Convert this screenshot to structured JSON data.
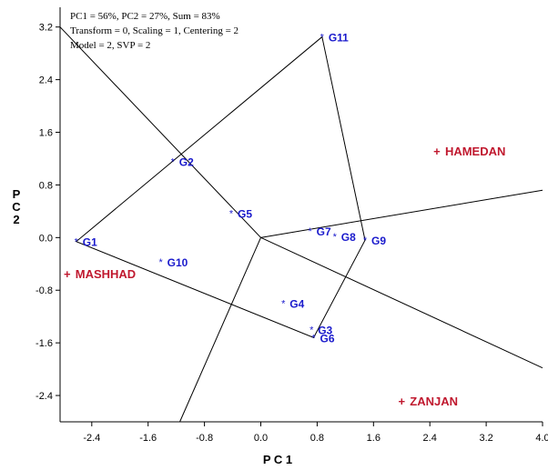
{
  "chart_data": {
    "type": "scatter",
    "title": "",
    "info_lines": [
      "PC1 = 56%, PC2 = 27%, Sum = 83%",
      "Transform = 0, Scaling = 1, Centering = 2",
      "Model = 2, SVP = 2"
    ],
    "xlabel": "P C 1",
    "ylabel": "P C 2",
    "xlim": [
      -2.85,
      4.0
    ],
    "ylim": [
      -2.8,
      3.5
    ],
    "xticks": [
      -2.4,
      -1.6,
      -0.8,
      0.0,
      0.8,
      1.6,
      2.4,
      3.2,
      4.0
    ],
    "xtick_labels": [
      "-2.4",
      "-1.6",
      "-0.8",
      "0.0",
      "0.8",
      "1.6",
      "2.4",
      "3.2",
      "4.0"
    ],
    "yticks": [
      3.2,
      2.4,
      1.6,
      0.8,
      0.0,
      -0.8,
      -1.6,
      -2.4
    ],
    "ytick_labels": [
      "3.2",
      "2.4",
      "1.6",
      "0.8",
      "0.0",
      "-0.8",
      "-1.6",
      "-2.4"
    ],
    "grid": false,
    "genotypes": [
      {
        "label": "G1",
        "x": -2.62,
        "y": -0.06
      },
      {
        "label": "G2",
        "x": -1.25,
        "y": 1.16
      },
      {
        "label": "G3",
        "x": 0.72,
        "y": -1.4
      },
      {
        "label": "G4",
        "x": 0.32,
        "y": -1.0
      },
      {
        "label": "G5",
        "x": -0.42,
        "y": 0.37
      },
      {
        "label": "G6",
        "x": 0.75,
        "y": -1.52
      },
      {
        "label": "G7",
        "x": 0.7,
        "y": 0.1
      },
      {
        "label": "G8",
        "x": 1.05,
        "y": 0.02
      },
      {
        "label": "G9",
        "x": 1.48,
        "y": -0.04
      },
      {
        "label": "G10",
        "x": -1.42,
        "y": -0.37
      },
      {
        "label": "G11",
        "x": 0.87,
        "y": 3.05
      }
    ],
    "environments": [
      {
        "label": "HAMEDAN",
        "x": 2.5,
        "y": 1.32
      },
      {
        "label": "MASHHAD",
        "x": -2.75,
        "y": -0.55
      },
      {
        "label": "ZANJAN",
        "x": 2.0,
        "y": -2.48
      }
    ],
    "hull": [
      "G11",
      "G9",
      "G6",
      "G1",
      "G11"
    ],
    "rays_end": [
      {
        "x": -2.85,
        "y": 3.2
      },
      {
        "x": 4.0,
        "y": 0.72
      },
      {
        "x": 4.0,
        "y": -1.98
      },
      {
        "x": -1.15,
        "y": -2.8
      }
    ],
    "colors": {
      "genotype": "#1a1acc",
      "environment": "#c0182e",
      "lines": "#000000"
    }
  }
}
